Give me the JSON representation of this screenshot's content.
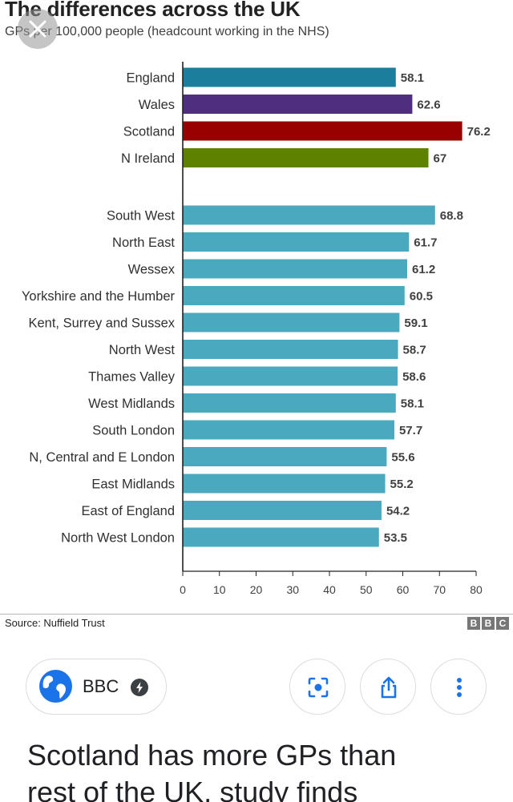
{
  "chart_data": {
    "type": "bar",
    "orientation": "horizontal",
    "title": "The differences across the UK",
    "subtitle": "GPs per 100,000 people (headcount working in the NHS)",
    "categories": [
      "England",
      "Wales",
      "Scotland",
      "N Ireland",
      "South West",
      "North East",
      "Wessex",
      "Yorkshire and the Humber",
      "Kent, Surrey and Sussex",
      "North West",
      "Thames Valley",
      "West Midlands",
      "South London",
      "N, Central and E London",
      "East Midlands",
      "East of England",
      "North West London"
    ],
    "values": [
      58.1,
      62.6,
      76.2,
      67,
      68.8,
      61.7,
      61.2,
      60.5,
      59.1,
      58.7,
      58.6,
      58.1,
      57.7,
      55.6,
      55.2,
      54.2,
      53.5
    ],
    "value_labels": [
      "58.1",
      "62.6",
      "76.2",
      "67",
      "68.8",
      "61.7",
      "61.2",
      "60.5",
      "59.1",
      "58.7",
      "58.6",
      "58.1",
      "57.7",
      "55.6",
      "55.2",
      "54.2",
      "53.5"
    ],
    "colors": [
      "#1c7e9d",
      "#4f2d7f",
      "#990000",
      "#5e8200",
      "#4aa9be",
      "#4aa9be",
      "#4aa9be",
      "#4aa9be",
      "#4aa9be",
      "#4aa9be",
      "#4aa9be",
      "#4aa9be",
      "#4aa9be",
      "#4aa9be",
      "#4aa9be",
      "#4aa9be",
      "#4aa9be"
    ],
    "xlim": [
      0,
      80
    ],
    "xticks": [
      0,
      10,
      20,
      30,
      40,
      50,
      60,
      70,
      80
    ],
    "grid": false,
    "xlabel": "",
    "ylabel": "",
    "source": "Source: Nuffield Trust"
  },
  "branding": {
    "logo_letters": [
      "B",
      "B",
      "C"
    ]
  },
  "icons": {
    "close": "close-icon",
    "globe": "globe-icon",
    "bolt": "bolt-icon",
    "lens": "lens-icon",
    "share": "share-icon",
    "more": "more-vert-icon"
  },
  "source_chip": {
    "label": "BBC"
  },
  "article": {
    "headline_line1": "Scotland has more GPs than",
    "headline_line2": "rest of the UK, study finds"
  }
}
